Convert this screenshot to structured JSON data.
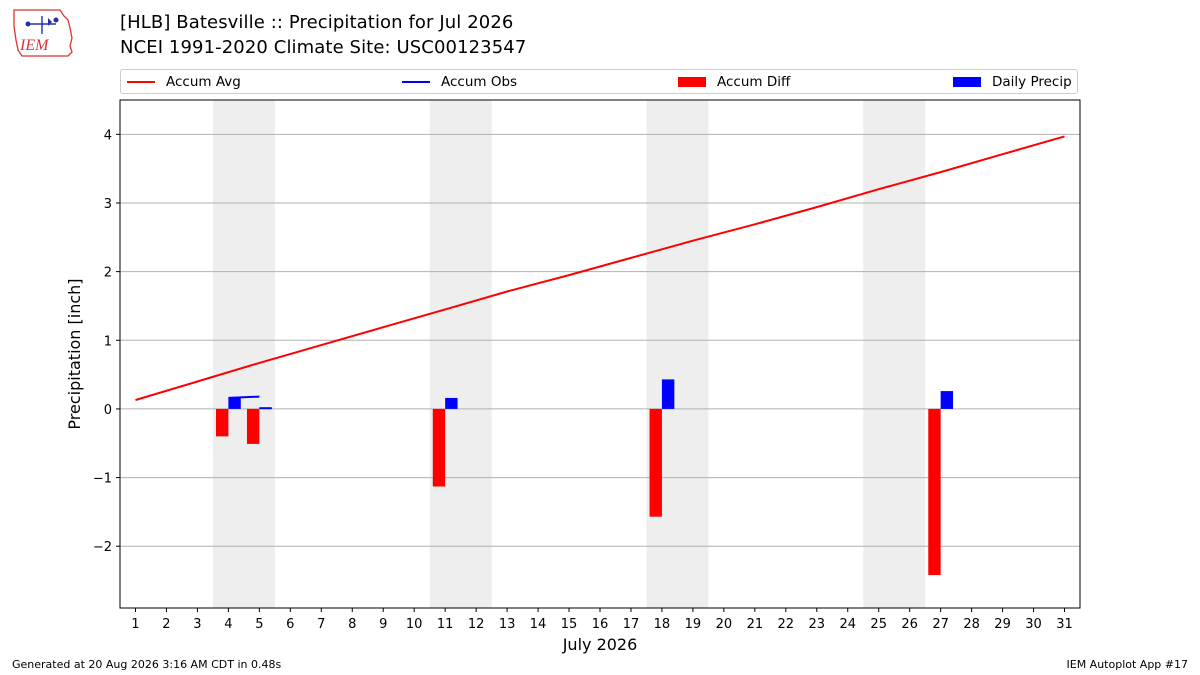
{
  "header": {
    "title_line1": "[HLB] Batesville :: Precipitation for Jul 2026",
    "title_line2": "NCEI 1991-2020 Climate Site: USC00123547",
    "logo_text": "IEM"
  },
  "footer": {
    "generated": "Generated at 20 Aug 2026 3:16 AM CDT in 0.48s",
    "app": "IEM Autoplot App #17"
  },
  "colors": {
    "accum_avg": "#ff0000",
    "accum_obs": "#0000ff",
    "accum_diff": "#ff0000",
    "daily_precip": "#0000ff",
    "weekend_shade": "#eeeeee",
    "grid": "#b0b0b0"
  },
  "chart_data": {
    "type": "bar",
    "xlabel": "July 2026",
    "ylabel": "Precipitation [inch]",
    "xlim": [
      0.5,
      31.5
    ],
    "ylim": [
      -2.9,
      4.5
    ],
    "x_ticks": [
      1,
      2,
      3,
      4,
      5,
      6,
      7,
      8,
      9,
      10,
      11,
      12,
      13,
      14,
      15,
      16,
      17,
      18,
      19,
      20,
      21,
      22,
      23,
      24,
      25,
      26,
      27,
      28,
      29,
      30,
      31
    ],
    "y_ticks": [
      -2,
      -1,
      0,
      1,
      2,
      3,
      4
    ],
    "y_tick_labels": [
      "−2",
      "−1",
      "0",
      "1",
      "2",
      "3",
      "4"
    ],
    "grid": "horizontal",
    "legend": [
      "Accum Avg",
      "Accum Obs",
      "Accum Diff",
      "Daily Precip"
    ],
    "legend_placement": "top",
    "shaded_day_ranges": [
      [
        3.5,
        5.5
      ],
      [
        10.5,
        12.5
      ],
      [
        17.5,
        19.5
      ],
      [
        24.5,
        26.5
      ]
    ],
    "series": [
      {
        "name": "Accum Avg",
        "kind": "line",
        "x": [
          1,
          3,
          5,
          7,
          9,
          11,
          13,
          15,
          17,
          19,
          21,
          23,
          25,
          27,
          29,
          31
        ],
        "values": [
          0.13,
          0.4,
          0.67,
          0.93,
          1.19,
          1.45,
          1.71,
          1.95,
          2.2,
          2.45,
          2.69,
          2.94,
          3.2,
          3.45,
          3.71,
          3.97
        ]
      },
      {
        "name": "Accum Obs",
        "kind": "line",
        "x": [
          4,
          5
        ],
        "values": [
          0.16,
          0.18
        ]
      },
      {
        "name": "Accum Obs (second segment)",
        "kind": "line",
        "x": [
          5,
          5.4
        ],
        "values": [
          0.01,
          0.01
        ]
      },
      {
        "name": "Accum Diff",
        "kind": "bar",
        "x": [
          4,
          5,
          11,
          18,
          27
        ],
        "values": [
          -0.4,
          -0.51,
          -1.13,
          -1.57,
          -2.42
        ]
      },
      {
        "name": "Daily Precip",
        "kind": "bar",
        "x": [
          4,
          5,
          11,
          18,
          27
        ],
        "values": [
          0.16,
          0.02,
          0.16,
          0.43,
          0.26
        ]
      }
    ]
  }
}
